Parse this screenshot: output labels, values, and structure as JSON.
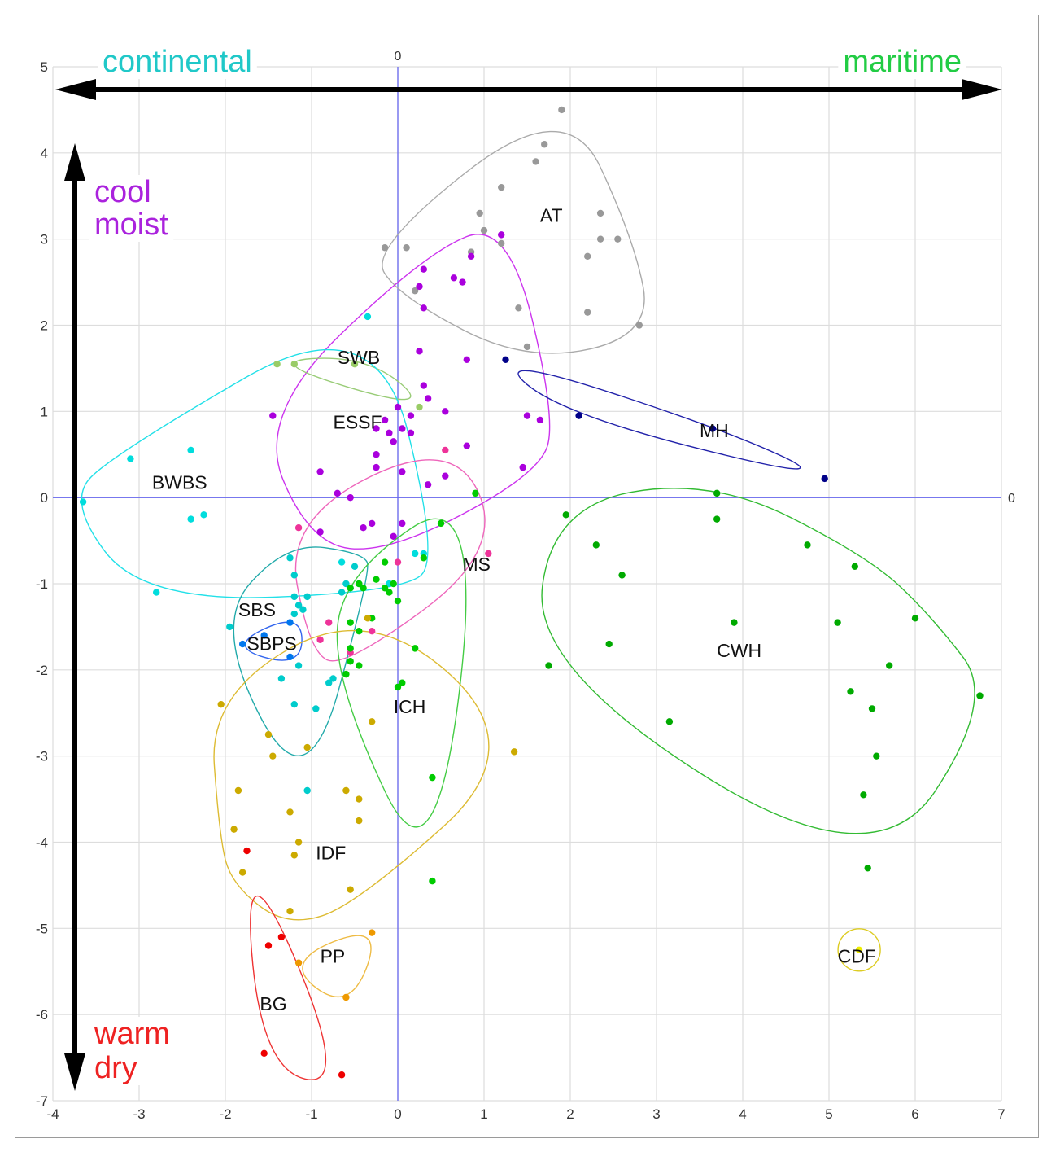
{
  "chart_data": {
    "type": "scatter",
    "xlim": [
      -4,
      7
    ],
    "ylim": [
      -7,
      5
    ],
    "x_ticks": [
      -4,
      -3,
      -2,
      -1,
      0,
      1,
      2,
      3,
      4,
      5,
      6,
      7
    ],
    "y_ticks": [
      -7,
      -6,
      -5,
      -4,
      -3,
      -2,
      -1,
      0,
      1,
      2,
      3,
      4,
      5
    ],
    "axis_zero_labels": {
      "top": "0",
      "right": "0"
    },
    "grid": true,
    "arrows": {
      "continental": {
        "label": "continental",
        "color": "#20c8c8"
      },
      "maritime": {
        "label": "maritime",
        "color": "#22cc44"
      },
      "cool": {
        "line1": "cool",
        "line2": "moist",
        "color": "#aa22dd"
      },
      "warm": {
        "line1": "warm",
        "line2": "dry",
        "color": "#ee2222"
      }
    },
    "series": [
      {
        "name": "AT",
        "color": "#999999",
        "hull": "#aaaaaa",
        "label_at": [
          1.65,
          3.2
        ],
        "points": [
          [
            1.9,
            4.5
          ],
          [
            1.7,
            4.1
          ],
          [
            1.6,
            3.9
          ],
          [
            1.2,
            3.6
          ],
          [
            0.95,
            3.3
          ],
          [
            1.0,
            3.1
          ],
          [
            1.2,
            2.95
          ],
          [
            -0.15,
            2.9
          ],
          [
            0.1,
            2.9
          ],
          [
            0.85,
            2.85
          ],
          [
            2.35,
            3.3
          ],
          [
            2.35,
            3.0
          ],
          [
            2.55,
            3.0
          ],
          [
            2.2,
            2.8
          ],
          [
            1.4,
            2.2
          ],
          [
            2.2,
            2.15
          ],
          [
            2.8,
            2.0
          ],
          [
            1.5,
            1.75
          ],
          [
            0.2,
            2.4
          ]
        ]
      },
      {
        "name": "ESSF",
        "color": "#aa00dd",
        "hull": "#cc33ee",
        "label_at": [
          -0.75,
          0.8
        ],
        "points": [
          [
            1.2,
            3.05
          ],
          [
            0.3,
            2.65
          ],
          [
            0.85,
            2.8
          ],
          [
            0.65,
            2.55
          ],
          [
            0.75,
            2.5
          ],
          [
            0.25,
            2.45
          ],
          [
            0.3,
            2.2
          ],
          [
            0.25,
            1.7
          ],
          [
            0.8,
            1.6
          ],
          [
            0.3,
            1.3
          ],
          [
            0.35,
            1.15
          ],
          [
            0.0,
            1.05
          ],
          [
            0.55,
            1.0
          ],
          [
            -0.15,
            0.9
          ],
          [
            0.15,
            0.95
          ],
          [
            1.5,
            0.95
          ],
          [
            1.65,
            0.9
          ],
          [
            0.05,
            0.8
          ],
          [
            -0.25,
            0.8
          ],
          [
            -0.1,
            0.75
          ],
          [
            0.15,
            0.75
          ],
          [
            -0.05,
            0.65
          ],
          [
            -0.25,
            0.5
          ],
          [
            0.8,
            0.6
          ],
          [
            -0.25,
            0.35
          ],
          [
            0.05,
            0.3
          ],
          [
            0.55,
            0.25
          ],
          [
            0.35,
            0.15
          ],
          [
            1.45,
            0.35
          ],
          [
            -1.45,
            0.95
          ],
          [
            -0.9,
            0.3
          ],
          [
            -0.7,
            0.05
          ],
          [
            -0.55,
            0.0
          ],
          [
            -0.3,
            -0.3
          ],
          [
            -0.4,
            -0.35
          ],
          [
            -0.9,
            -0.4
          ],
          [
            -0.05,
            -0.45
          ],
          [
            0.05,
            -0.3
          ]
        ]
      },
      {
        "name": "SWB",
        "color": "#99cc66",
        "hull": "#99cc77",
        "label_at": [
          -0.7,
          1.55
        ],
        "points": [
          [
            -1.4,
            1.55
          ],
          [
            -1.2,
            1.55
          ],
          [
            -0.5,
            1.55
          ],
          [
            0.25,
            1.05
          ]
        ]
      },
      {
        "name": "BWBS",
        "color": "#00dddd",
        "hull": "#22e0e8",
        "label_at": [
          -2.85,
          0.1
        ],
        "points": [
          [
            -0.35,
            2.1
          ],
          [
            -3.1,
            0.45
          ],
          [
            -2.4,
            0.55
          ],
          [
            -3.65,
            -0.05
          ],
          [
            -2.4,
            -0.25
          ],
          [
            -2.25,
            -0.2
          ],
          [
            -2.8,
            -1.1
          ],
          [
            0.3,
            -0.65
          ],
          [
            0.2,
            -0.65
          ],
          [
            -0.1,
            -1.0
          ],
          [
            -0.65,
            -0.75
          ]
        ]
      },
      {
        "name": "MH",
        "color": "#000088",
        "hull": "#2222aa",
        "label_at": [
          3.5,
          0.7
        ],
        "points": [
          [
            1.25,
            1.6
          ],
          [
            2.1,
            0.95
          ],
          [
            3.65,
            0.8
          ],
          [
            4.95,
            0.22
          ]
        ]
      },
      {
        "name": "MS",
        "color": "#ee3399",
        "hull": "#ee66bb",
        "label_at": [
          0.75,
          -0.85
        ],
        "points": [
          [
            0.55,
            0.55
          ],
          [
            -1.15,
            -0.35
          ],
          [
            0.0,
            -0.75
          ],
          [
            1.05,
            -0.65
          ],
          [
            -0.8,
            -1.45
          ],
          [
            -0.3,
            -1.55
          ],
          [
            -0.55,
            -1.8
          ],
          [
            -0.9,
            -1.65
          ]
        ]
      },
      {
        "name": "SBS",
        "color": "#00cccc",
        "hull": "#22aaaa",
        "label_at": [
          -1.85,
          -1.38
        ],
        "points": [
          [
            -1.25,
            -0.7
          ],
          [
            -0.5,
            -0.8
          ],
          [
            -1.2,
            -0.9
          ],
          [
            -0.6,
            -1.0
          ],
          [
            -0.55,
            -1.05
          ],
          [
            -0.45,
            -1.0
          ],
          [
            -1.2,
            -1.15
          ],
          [
            -1.05,
            -1.15
          ],
          [
            -1.15,
            -1.25
          ],
          [
            -1.1,
            -1.3
          ],
          [
            -1.2,
            -1.35
          ],
          [
            -1.95,
            -1.5
          ],
          [
            -1.35,
            -2.1
          ],
          [
            -1.15,
            -1.95
          ],
          [
            -0.75,
            -2.1
          ],
          [
            -0.8,
            -2.15
          ],
          [
            -1.2,
            -2.4
          ],
          [
            -0.95,
            -2.45
          ],
          [
            -1.05,
            -3.4
          ],
          [
            -0.65,
            -1.1
          ]
        ]
      },
      {
        "name": "SBPS",
        "color": "#0077ee",
        "hull": "#3366ee",
        "label_at": [
          -1.75,
          -1.77
        ],
        "points": [
          [
            -1.55,
            -1.6
          ],
          [
            -1.25,
            -1.45
          ],
          [
            -1.8,
            -1.7
          ],
          [
            -1.25,
            -1.85
          ]
        ]
      },
      {
        "name": "ICH",
        "color": "#00cc00",
        "hull": "#44cc44",
        "label_at": [
          -0.05,
          -2.5
        ],
        "points": [
          [
            0.5,
            -0.3
          ],
          [
            0.3,
            -0.7
          ],
          [
            -0.15,
            -0.75
          ],
          [
            -0.25,
            -0.95
          ],
          [
            -0.15,
            -1.05
          ],
          [
            -0.4,
            -1.05
          ],
          [
            -0.45,
            -1.0
          ],
          [
            -0.05,
            -1.0
          ],
          [
            -0.1,
            -1.1
          ],
          [
            -0.55,
            -1.05
          ],
          [
            0.0,
            -1.2
          ],
          [
            -0.3,
            -1.4
          ],
          [
            -0.55,
            -1.45
          ],
          [
            -0.45,
            -1.55
          ],
          [
            -0.55,
            -1.75
          ],
          [
            -0.55,
            -1.9
          ],
          [
            -0.45,
            -1.95
          ],
          [
            -0.6,
            -2.05
          ],
          [
            0.2,
            -1.75
          ],
          [
            0.05,
            -2.15
          ],
          [
            0.0,
            -2.2
          ],
          [
            0.4,
            -3.25
          ],
          [
            0.4,
            -4.45
          ],
          [
            0.9,
            0.05
          ]
        ]
      },
      {
        "name": "CWH",
        "color": "#00aa00",
        "hull": "#33bb33",
        "label_at": [
          3.7,
          -1.85
        ],
        "points": [
          [
            1.95,
            -0.2
          ],
          [
            3.7,
            0.05
          ],
          [
            3.7,
            -0.25
          ],
          [
            2.3,
            -0.55
          ],
          [
            2.6,
            -0.9
          ],
          [
            4.75,
            -0.55
          ],
          [
            5.3,
            -0.8
          ],
          [
            3.9,
            -1.45
          ],
          [
            5.1,
            -1.45
          ],
          [
            6.0,
            -1.4
          ],
          [
            2.45,
            -1.7
          ],
          [
            1.75,
            -1.95
          ],
          [
            5.7,
            -1.95
          ],
          [
            5.25,
            -2.25
          ],
          [
            6.75,
            -2.3
          ],
          [
            5.5,
            -2.45
          ],
          [
            3.15,
            -2.6
          ],
          [
            5.55,
            -3.0
          ],
          [
            5.4,
            -3.45
          ],
          [
            5.45,
            -4.3
          ]
        ]
      },
      {
        "name": "IDF",
        "color": "#ccaa00",
        "hull": "#ddbb33",
        "label_at": [
          -0.95,
          -4.2
        ],
        "points": [
          [
            -2.05,
            -2.4
          ],
          [
            -1.5,
            -2.75
          ],
          [
            -1.45,
            -3.0
          ],
          [
            -1.05,
            -2.9
          ],
          [
            -1.85,
            -3.4
          ],
          [
            -1.25,
            -3.65
          ],
          [
            -1.9,
            -3.85
          ],
          [
            -1.15,
            -4.0
          ],
          [
            -1.2,
            -4.15
          ],
          [
            -0.6,
            -3.4
          ],
          [
            -0.45,
            -3.5
          ],
          [
            -0.45,
            -3.75
          ],
          [
            -0.55,
            -4.55
          ],
          [
            -1.8,
            -4.35
          ],
          [
            -0.3,
            -2.6
          ],
          [
            1.35,
            -2.95
          ],
          [
            -0.35,
            -1.4
          ],
          [
            -1.25,
            -4.8
          ]
        ]
      },
      {
        "name": "PP",
        "color": "#ee9900",
        "hull": "#eebb44",
        "label_at": [
          -0.9,
          -5.4
        ],
        "points": [
          [
            -1.15,
            -5.4
          ],
          [
            -0.3,
            -5.05
          ],
          [
            -0.6,
            -5.8
          ]
        ]
      },
      {
        "name": "BG",
        "color": "#ee0000",
        "hull": "#ee3333",
        "label_at": [
          -1.6,
          -5.95
        ],
        "points": [
          [
            -1.75,
            -4.1
          ],
          [
            -1.5,
            -5.2
          ],
          [
            -1.35,
            -5.1
          ],
          [
            -1.55,
            -6.45
          ],
          [
            -0.65,
            -6.7
          ]
        ]
      },
      {
        "name": "CDF",
        "color": "#eeee00",
        "hull": "#ddcc22",
        "label_at": [
          5.1,
          -5.4
        ],
        "points": [
          [
            5.35,
            -5.25
          ]
        ]
      }
    ]
  }
}
